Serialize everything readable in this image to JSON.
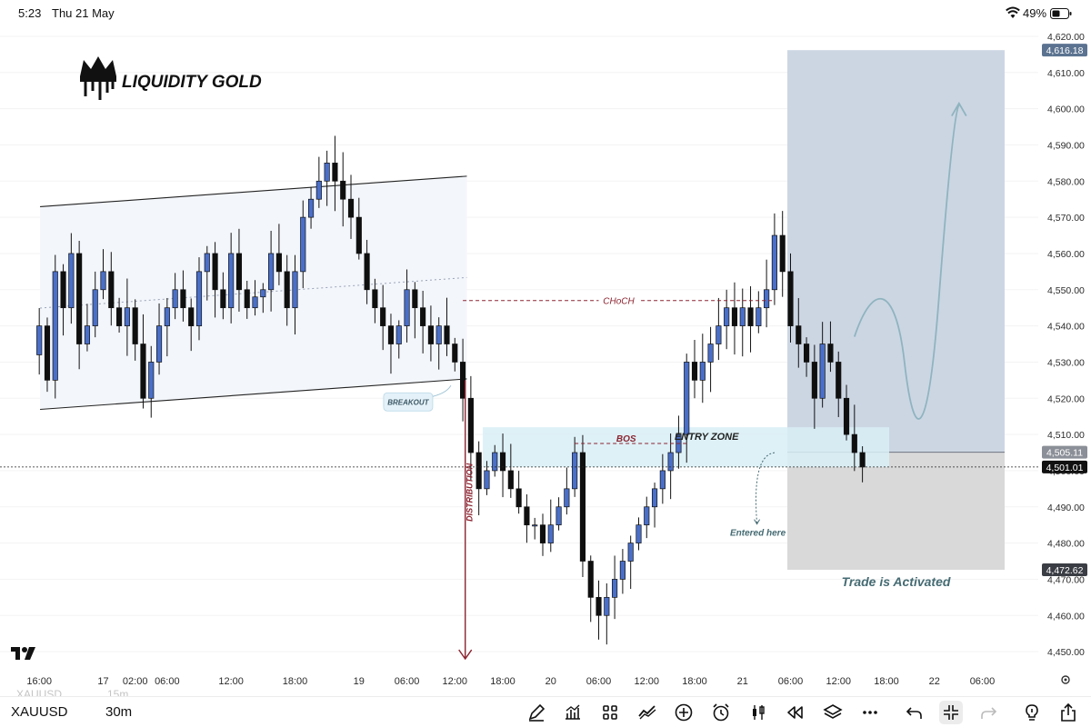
{
  "status_bar": {
    "time": "5:23",
    "date": "Thu 21 May",
    "battery": "49%"
  },
  "logo": {
    "text": "LIQUIDITY GOLD"
  },
  "toolbar": {
    "symbol": "XAUUSD",
    "interval": "30m",
    "watermark": "XAUUSD",
    "watermark_interval": "15m"
  },
  "chart_data": {
    "type": "candlestick",
    "symbol": "XAUUSD",
    "interval": "30m",
    "ylim": [
      4445,
      4622
    ],
    "y_ticks": [
      4450,
      4460,
      4470,
      4480,
      4490,
      4500,
      4510,
      4520,
      4530,
      4540,
      4550,
      4560,
      4570,
      4580,
      4590,
      4600,
      4610,
      4620
    ],
    "y_tick_labels": [
      "4,450.00",
      "4,460.00",
      "4,470.00",
      "4,480.00",
      "4,490.00",
      "4,500.00",
      "4,510.00",
      "4,520.00",
      "4,530.00",
      "4,540.00",
      "4,550.00",
      "4,560.00",
      "4,570.00",
      "4,580.00",
      "4,590.00",
      "4,600.00",
      "4,610.00",
      "4,620.00"
    ],
    "x_ticks": [
      {
        "t": 0,
        "label": "16:00"
      },
      {
        "t": 8,
        "label": "17"
      },
      {
        "t": 12,
        "label": "02:00"
      },
      {
        "t": 16,
        "label": "06:00"
      },
      {
        "t": 24,
        "label": "12:00"
      },
      {
        "t": 32,
        "label": "18:00"
      },
      {
        "t": 40,
        "label": "19"
      },
      {
        "t": 46,
        "label": "06:00"
      },
      {
        "t": 52,
        "label": "12:00"
      },
      {
        "t": 58,
        "label": "18:00"
      },
      {
        "t": 64,
        "label": "20"
      },
      {
        "t": 70,
        "label": "06:00"
      },
      {
        "t": 76,
        "label": "12:00"
      },
      {
        "t": 82,
        "label": "18:00"
      },
      {
        "t": 88,
        "label": "21"
      },
      {
        "t": 94,
        "label": "06:00"
      },
      {
        "t": 100,
        "label": "12:00"
      },
      {
        "t": 106,
        "label": "18:00"
      },
      {
        "t": 112,
        "label": "22"
      },
      {
        "t": 118,
        "label": "06:00"
      }
    ],
    "x_range_hours": [
      -1.5,
      125
    ],
    "series": [
      {
        "name": "price",
        "points": [
          [
            0,
            4540
          ],
          [
            1,
            4525
          ],
          [
            2,
            4555
          ],
          [
            3,
            4545
          ],
          [
            4,
            4560
          ],
          [
            5,
            4535
          ],
          [
            6,
            4540
          ],
          [
            7,
            4550
          ],
          [
            8,
            4555
          ],
          [
            9,
            4545
          ],
          [
            10,
            4540
          ],
          [
            11,
            4545
          ],
          [
            12,
            4535
          ],
          [
            13,
            4520
          ],
          [
            14,
            4530
          ],
          [
            15,
            4540
          ],
          [
            16,
            4545
          ],
          [
            17,
            4550
          ],
          [
            18,
            4545
          ],
          [
            19,
            4540
          ],
          [
            20,
            4555
          ],
          [
            21,
            4560
          ],
          [
            22,
            4550
          ],
          [
            23,
            4545
          ],
          [
            24,
            4560
          ],
          [
            25,
            4550
          ],
          [
            26,
            4545
          ],
          [
            27,
            4548
          ],
          [
            28,
            4550
          ],
          [
            29,
            4560
          ],
          [
            30,
            4555
          ],
          [
            31,
            4545
          ],
          [
            32,
            4555
          ],
          [
            33,
            4570
          ],
          [
            34,
            4575
          ],
          [
            35,
            4580
          ],
          [
            36,
            4585
          ],
          [
            37,
            4580
          ],
          [
            38,
            4575
          ],
          [
            39,
            4570
          ],
          [
            40,
            4560
          ],
          [
            41,
            4550
          ],
          [
            42,
            4545
          ],
          [
            43,
            4540
          ],
          [
            44,
            4535
          ],
          [
            45,
            4540
          ],
          [
            46,
            4550
          ],
          [
            47,
            4545
          ],
          [
            48,
            4540
          ],
          [
            49,
            4535
          ],
          [
            50,
            4540
          ],
          [
            51,
            4535
          ],
          [
            52,
            4530
          ],
          [
            53,
            4520
          ],
          [
            54,
            4505
          ],
          [
            55,
            4495
          ],
          [
            56,
            4500
          ],
          [
            57,
            4505
          ],
          [
            58,
            4500
          ],
          [
            59,
            4495
          ],
          [
            60,
            4490
          ],
          [
            61,
            4485
          ],
          [
            62,
            4485
          ],
          [
            63,
            4480
          ],
          [
            64,
            4485
          ],
          [
            65,
            4490
          ],
          [
            66,
            4495
          ],
          [
            67,
            4505
          ],
          [
            68,
            4475
          ],
          [
            69,
            4465
          ],
          [
            70,
            4460
          ],
          [
            71,
            4465
          ],
          [
            72,
            4470
          ],
          [
            73,
            4475
          ],
          [
            74,
            4480
          ],
          [
            75,
            4485
          ],
          [
            76,
            4490
          ],
          [
            77,
            4495
          ],
          [
            78,
            4500
          ],
          [
            79,
            4505
          ],
          [
            80,
            4510
          ],
          [
            81,
            4530
          ],
          [
            82,
            4525
          ],
          [
            83,
            4530
          ],
          [
            84,
            4535
          ],
          [
            85,
            4540
          ],
          [
            86,
            4545
          ],
          [
            87,
            4540
          ],
          [
            88,
            4545
          ],
          [
            89,
            4540
          ],
          [
            90,
            4545
          ],
          [
            91,
            4550
          ],
          [
            92,
            4565
          ],
          [
            93,
            4555
          ],
          [
            94,
            4540
          ],
          [
            95,
            4535
          ],
          [
            96,
            4530
          ],
          [
            97,
            4520
          ],
          [
            98,
            4535
          ],
          [
            99,
            4530
          ],
          [
            100,
            4520
          ],
          [
            101,
            4510
          ],
          [
            102,
            4505
          ],
          [
            103,
            4501
          ]
        ]
      }
    ],
    "last_price": 4501.01,
    "price_tags": [
      {
        "value": 4616.18,
        "label": "4,616.18",
        "color": "#5b7390"
      },
      {
        "value": 4505.11,
        "label": "4,505.11",
        "color": "#8b8f97"
      },
      {
        "value": 4501.01,
        "label": "4,501.01",
        "color": "#111111"
      },
      {
        "value": 4472.62,
        "label": "4,472.62",
        "color": "#3a3d44"
      }
    ],
    "annotations": {
      "choch": {
        "text": "CHoCH",
        "price": 4547
      },
      "bos": {
        "text": "BOS",
        "price": 4507.5
      },
      "breakout": {
        "text": "BREAKOUT"
      },
      "distribution": {
        "text": "DISTRIBUTION"
      },
      "entry_zone": {
        "text": "ENTRY ZONE",
        "from": 4501,
        "to": 4512
      },
      "entered_here": {
        "text": "Entered here"
      },
      "trade_status": {
        "text": "Trade is Activated"
      },
      "target_zone": {
        "from": 4505.11,
        "to": 4616.18
      },
      "stop_zone": {
        "from": 4472.62,
        "to": 4505.11
      }
    },
    "colors": {
      "bull": "#4a6fc9",
      "bear": "#0f0f0f",
      "target": "#ccd6e3",
      "stop": "#d9d9d9",
      "entry": "#d8eef6",
      "channel": "#f3f6fb",
      "annotation_red": "#8b2430",
      "arrow_teal": "#8fb4bf"
    }
  }
}
